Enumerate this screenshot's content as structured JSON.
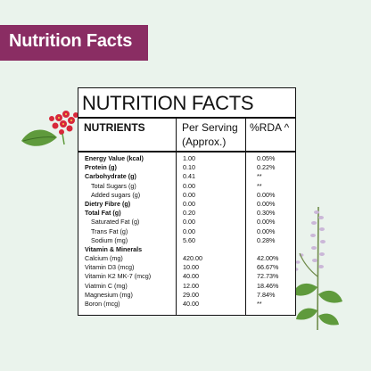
{
  "banner": {
    "title": "Nutrition Facts"
  },
  "panel": {
    "title": "NUTRITION FACTS",
    "col_nutrients": "NUTRIENTS",
    "col_per_serving_line1": "Per Serving",
    "col_per_serving_line2": "(Approx.)",
    "col_rda": "%RDA ^"
  },
  "rows": [
    {
      "name": "Energy Value (kcal)",
      "value": "1.00",
      "rda": "0.05%",
      "style": "bold"
    },
    {
      "name": "Protein (g)",
      "value": "0.10",
      "rda": "0.22%",
      "style": "bold"
    },
    {
      "name": "Carbohydrate (g)",
      "value": "0.41",
      "rda": "**",
      "style": "bold"
    },
    {
      "name": "Total Sugars (g)",
      "value": "0.00",
      "rda": "**",
      "style": "sub"
    },
    {
      "name": "Added sugars (g)",
      "value": "0.00",
      "rda": "0.00%",
      "style": "sub"
    },
    {
      "name": "Dietry Fibre (g)",
      "value": "0.00",
      "rda": "0.00%",
      "style": "bold"
    },
    {
      "name": "Total Fat (g)",
      "value": "0.20",
      "rda": "0.30%",
      "style": "bold"
    },
    {
      "name": "Saturated Fat (g)",
      "value": "0.00",
      "rda": "0.00%",
      "style": "sub"
    },
    {
      "name": "Trans Fat (g)",
      "value": "0.00",
      "rda": "0.00%",
      "style": "sub"
    },
    {
      "name": "Sodium (mg)",
      "value": "5.60",
      "rda": "0.28%",
      "style": "sub"
    },
    {
      "name": "Vitamin & Minerals",
      "value": "",
      "rda": "",
      "style": "bold"
    },
    {
      "name": "Calcium (mg)",
      "value": "420.00",
      "rda": "42.00%",
      "style": "normal"
    },
    {
      "name": "Vitamin D3 (mcg)",
      "value": "10.00",
      "rda": "66.67%",
      "style": "normal"
    },
    {
      "name": "Vitamin K2 MK-7 (mcg)",
      "value": "40.00",
      "rda": "72.73%",
      "style": "normal"
    },
    {
      "name": "Viatmin C (mg)",
      "value": "12.00",
      "rda": "18.46%",
      "style": "normal"
    },
    {
      "name": "Magnesium (mg)",
      "value": "29.00",
      "rda": "7.84%",
      "style": "normal"
    },
    {
      "name": "Boron (mcg)",
      "value": "40.00",
      "rda": "**",
      "style": "normal"
    }
  ],
  "colors": {
    "background": "#eaf3ec",
    "banner": "#8a2d63",
    "banner_text": "#ffffff",
    "panel_border": "#111111",
    "flower_red": "#d8283a",
    "leaf_green": "#5f9a3c",
    "lavender": "#cbb7d8"
  },
  "decorations": {
    "left": "red-flower-cluster-icon",
    "right": "basil-flower-sprig-icon"
  }
}
